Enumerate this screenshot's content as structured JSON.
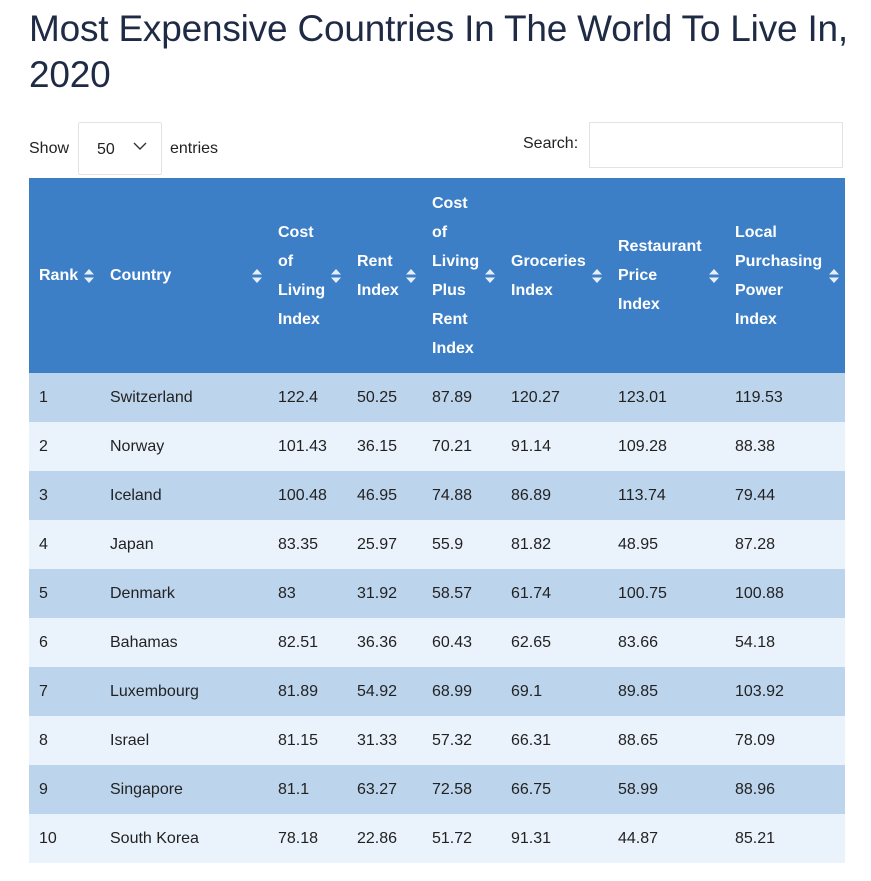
{
  "page": {
    "title": "Most Expensive Countries In The World To Live In, 2020"
  },
  "controls": {
    "show_label": "Show",
    "entries_value": "50",
    "entries_label": "entries",
    "search_label": "Search:",
    "search_value": ""
  },
  "table": {
    "columns": [
      "Rank",
      "Country",
      "Cost of Living Index",
      "Rent Index",
      "Cost of Living Plus Rent Index",
      "Groceries Index",
      "Restaurant Price Index",
      "Local Purchasing Power Index"
    ],
    "rows": [
      [
        "1",
        "Switzerland",
        "122.4",
        "50.25",
        "87.89",
        "120.27",
        "123.01",
        "119.53"
      ],
      [
        "2",
        "Norway",
        "101.43",
        "36.15",
        "70.21",
        "91.14",
        "109.28",
        "88.38"
      ],
      [
        "3",
        "Iceland",
        "100.48",
        "46.95",
        "74.88",
        "86.89",
        "113.74",
        "79.44"
      ],
      [
        "4",
        "Japan",
        "83.35",
        "25.97",
        "55.9",
        "81.82",
        "48.95",
        "87.28"
      ],
      [
        "5",
        "Denmark",
        "83",
        "31.92",
        "58.57",
        "61.74",
        "100.75",
        "100.88"
      ],
      [
        "6",
        "Bahamas",
        "82.51",
        "36.36",
        "60.43",
        "62.65",
        "83.66",
        "54.18"
      ],
      [
        "7",
        "Luxembourg",
        "81.89",
        "54.92",
        "68.99",
        "69.1",
        "89.85",
        "103.92"
      ],
      [
        "8",
        "Israel",
        "81.15",
        "31.33",
        "57.32",
        "66.31",
        "88.65",
        "78.09"
      ],
      [
        "9",
        "Singapore",
        "81.1",
        "63.27",
        "72.58",
        "66.75",
        "58.99",
        "88.96"
      ],
      [
        "10",
        "South Korea",
        "78.18",
        "22.86",
        "51.72",
        "91.31",
        "44.87",
        "85.21"
      ]
    ]
  },
  "icons": {
    "sort": "sort-both-icon",
    "select": "chevron-down-icon"
  },
  "colors": {
    "header_bg": "#3d7fc7",
    "row_odd": "#bcd4ec",
    "row_even": "#eaf3fc",
    "title": "#1f2a44"
  }
}
